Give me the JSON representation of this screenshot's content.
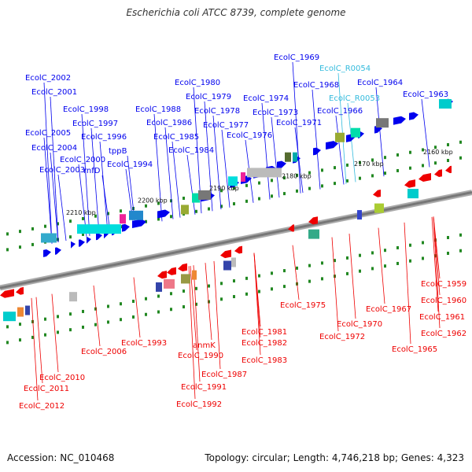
{
  "title": "Escherichia coli ATCC 8739, complete genome",
  "footer": {
    "accession": "Accession: NC_010468",
    "topology": "Topology: circular; Length: 4,746,218 bp; Genes: 4,323"
  },
  "colors": {
    "forward_gene": "#0000ee",
    "reverse_gene": "#ee0000",
    "rna_label": "#33bbdd",
    "backbone": "#777777",
    "tick_dots": "#228822"
  },
  "scale_ticks": [
    "2160 kbp",
    "2170 kbp",
    "2180 kbp",
    "2190 kbp",
    "2200 kbp",
    "2210 kbp"
  ],
  "top_labels": [
    "EcolC_1969",
    "EcolC_R0054",
    "EcolC_1968",
    "EcolC_1964",
    "EcolC_1980",
    "EcolC_R0053",
    "EcolC_1963",
    "EcolC_1979",
    "EcolC_1974",
    "EcolC_1966",
    "EcolC_1988",
    "EcolC_1978",
    "EcolC_1973",
    "EcolC_1986",
    "EcolC_1977",
    "EcolC_1971",
    "EcolC_1985",
    "EcolC_1976",
    "EcolC_1984",
    "EcolC_2002",
    "EcolC_2001",
    "EcolC_1998",
    "EcolC_1997",
    "EcolC_2005",
    "EcolC_1996",
    "tppB",
    "EcolC_2004",
    "EcolC_2000",
    "EcolC_1994",
    "rnfD",
    "EcolC_2003"
  ],
  "bottom_labels": [
    "EcolC_1959",
    "EcolC_1960",
    "EcolC_1975",
    "EcolC_1961",
    "EcolC_1967",
    "EcolC_1970",
    "EcolC_1962",
    "EcolC_1981",
    "EcolC_1972",
    "EcolC_1993",
    "EcolC_1982",
    "anmK",
    "EcolC_2006",
    "EcolC_1965",
    "EcolC_1990",
    "EcolC_1983",
    "EcolC_1987",
    "EcolC_2010",
    "EcolC_2011",
    "EcolC_1991",
    "EcolC_2012",
    "EcolC_1992"
  ]
}
